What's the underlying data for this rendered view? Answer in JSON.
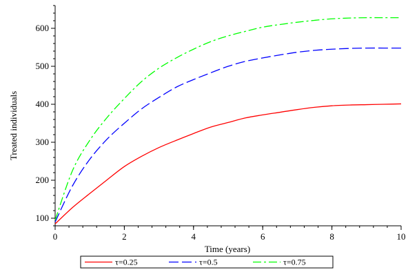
{
  "chart_data": {
    "type": "line",
    "xlabel": "Time (years)",
    "ylabel": "Treated individuals",
    "xlim": [
      0,
      10
    ],
    "ylim": [
      80,
      660
    ],
    "x_ticks": [
      0,
      2,
      4,
      6,
      8,
      10
    ],
    "y_ticks": [
      100,
      200,
      300,
      400,
      500,
      600
    ],
    "x_minor_step": 0.4,
    "y_minor_step": 20,
    "grid": false,
    "legend_position": "bottom",
    "colors": {
      "tau_025": "#ff0000",
      "tau_05": "#0000ff",
      "tau_075": "#00ff00",
      "axis": "#000000"
    },
    "series": [
      {
        "name": "τ=0.25",
        "color": "#ff0000",
        "dash": "solid",
        "x": [
          0,
          0.5,
          1,
          1.5,
          2,
          2.5,
          3,
          3.5,
          4,
          4.5,
          5,
          5.5,
          6,
          6.5,
          7,
          7.5,
          8,
          8.5,
          9,
          9.5,
          10
        ],
        "y": [
          85,
          128,
          165,
          201,
          236,
          263,
          286,
          305,
          323,
          340,
          352,
          364,
          372,
          379,
          386,
          392,
          396,
          398,
          399,
          400,
          401
        ]
      },
      {
        "name": "τ=0.5",
        "color": "#0000ff",
        "dash": "longdash",
        "x": [
          0,
          0.5,
          1,
          1.5,
          2,
          2.5,
          3,
          3.5,
          4,
          4.5,
          5,
          5.5,
          6,
          6.5,
          7,
          7.5,
          8,
          8.5,
          9,
          9.5,
          10
        ],
        "y": [
          90,
          185,
          255,
          308,
          350,
          388,
          418,
          445,
          465,
          483,
          500,
          513,
          522,
          530,
          537,
          542,
          545,
          547,
          548,
          548,
          548
        ]
      },
      {
        "name": "τ=0.75",
        "color": "#00ff00",
        "dash": "dashdot",
        "x": [
          0,
          0.5,
          1,
          1.5,
          2,
          2.5,
          3,
          3.5,
          4,
          4.5,
          5,
          5.5,
          6,
          6.5,
          7,
          7.5,
          8,
          8.5,
          9,
          9.5,
          10
        ],
        "y": [
          95,
          225,
          305,
          365,
          415,
          460,
          495,
          522,
          545,
          565,
          580,
          592,
          603,
          610,
          616,
          621,
          625,
          627,
          628,
          628,
          628
        ]
      }
    ]
  }
}
